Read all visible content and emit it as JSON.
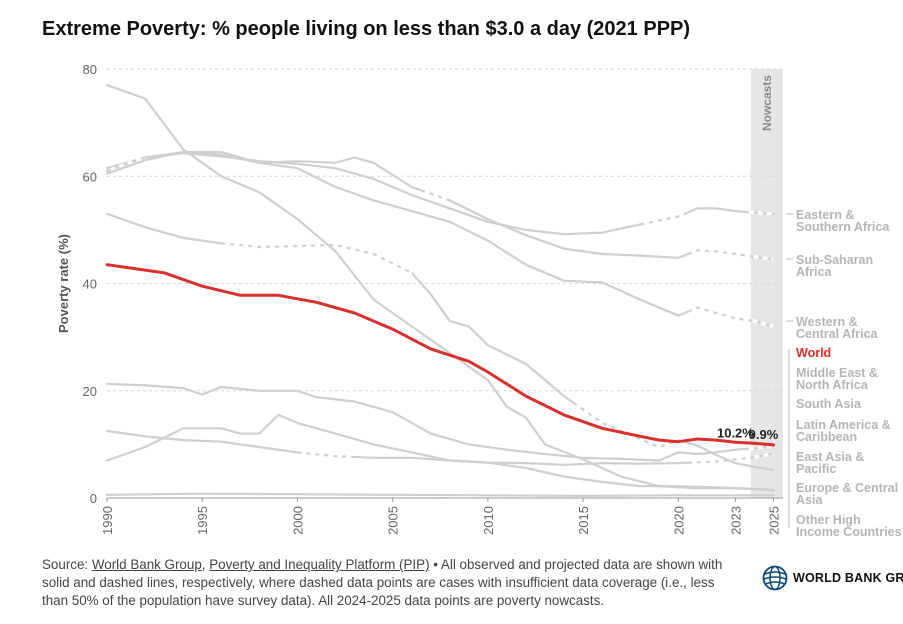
{
  "title": "Extreme Poverty: % people living on less than $3.0 a day (2021 PPP)",
  "footer": {
    "source_label": "Source: ",
    "link1": "World Bank Group",
    "sep": ", ",
    "link2": "Poverty and Inequality Platform (PIP)",
    "rest": " • All observed and projected data are shown with solid and dashed lines, respectively, where dashed data points are cases with insufficient data coverage (i.e., less than 50% of the population have survey data). All 2024-2025 data points are poverty nowcasts."
  },
  "logo": {
    "text": "WORLD BANK GROUP",
    "icon": "globe-icon"
  },
  "chart_data": {
    "type": "line",
    "xlim": [
      1990,
      2025.5
    ],
    "ylim": [
      0,
      80
    ],
    "xticks": [
      1990,
      1995,
      2000,
      2005,
      2010,
      2015,
      2020,
      2023,
      2025
    ],
    "yticks": [
      0,
      20,
      40,
      60,
      80
    ],
    "ylabel": "Poverty rate (%)",
    "xlabel": "",
    "grid": "horizontal dashed",
    "nowcast_band": {
      "from": 2023.8,
      "to": 2025.5,
      "label": "Nowcasts"
    },
    "colors": {
      "highlight": "#d9302c",
      "context": "#cfcfcf",
      "band": "#e6e6e6",
      "label_gray": "#b5b5b5"
    },
    "series": [
      {
        "name": "Eastern & Southern Africa",
        "label_lines": [
          "Eastern &",
          "Southern Africa"
        ],
        "highlight": false,
        "points": [
          [
            1990,
            61.5
          ],
          [
            1992,
            63.5
          ],
          [
            1994,
            64.3
          ],
          [
            1996,
            63.7
          ],
          [
            1998,
            62.8
          ],
          [
            2000,
            62.3
          ],
          [
            2002,
            61.5
          ],
          [
            2004,
            59.5
          ],
          [
            2006,
            56.5
          ],
          [
            2008,
            54
          ],
          [
            2010,
            51.5
          ],
          [
            2012,
            50
          ],
          [
            2014,
            49.2
          ],
          [
            2016,
            49.5
          ],
          [
            2018,
            51
          ],
          [
            2020,
            52.5
          ],
          [
            2021,
            54
          ],
          [
            2022,
            54
          ],
          [
            2023,
            53.5
          ],
          [
            2024,
            53.2
          ],
          [
            2025,
            53
          ]
        ],
        "dashed": [
          [
            2018,
            2020.5
          ],
          [
            2023.5,
            2025
          ]
        ]
      },
      {
        "name": "Sub-Saharan Africa",
        "label_lines": [
          "Sub-Saharan",
          "Africa"
        ],
        "highlight": false,
        "points": [
          [
            1990,
            61
          ],
          [
            1992,
            63.5
          ],
          [
            1994,
            64.5
          ],
          [
            1996,
            64
          ],
          [
            1998,
            62.5
          ],
          [
            2000,
            62.8
          ],
          [
            2002,
            62.5
          ],
          [
            2003,
            63.5
          ],
          [
            2004,
            62.5
          ],
          [
            2006,
            58
          ],
          [
            2008,
            55.5
          ],
          [
            2010,
            52
          ],
          [
            2012,
            49
          ],
          [
            2014,
            46.5
          ],
          [
            2016,
            45.5
          ],
          [
            2018,
            45.2
          ],
          [
            2020,
            44.8
          ],
          [
            2021,
            46.2
          ],
          [
            2022,
            46
          ],
          [
            2023,
            45.5
          ],
          [
            2024,
            45
          ],
          [
            2025,
            44.5
          ]
        ],
        "dashed": [
          [
            1990,
            1992
          ],
          [
            2006.5,
            2008
          ],
          [
            2020.5,
            2025
          ]
        ]
      },
      {
        "name": "Western & Central Africa",
        "label_lines": [
          "Western &",
          "Central Africa"
        ],
        "highlight": false,
        "points": [
          [
            1990,
            60.5
          ],
          [
            1992,
            63
          ],
          [
            1994,
            64.5
          ],
          [
            1996,
            64.5
          ],
          [
            1998,
            62.5
          ],
          [
            2000,
            61.5
          ],
          [
            2002,
            58
          ],
          [
            2004,
            55.5
          ],
          [
            2006,
            53.5
          ],
          [
            2008,
            51.5
          ],
          [
            2010,
            48
          ],
          [
            2012,
            43.5
          ],
          [
            2014,
            40.5
          ],
          [
            2016,
            40.2
          ],
          [
            2018,
            37
          ],
          [
            2020,
            34
          ],
          [
            2021,
            35.5
          ],
          [
            2022,
            34.5
          ],
          [
            2023,
            33.5
          ],
          [
            2024,
            33
          ],
          [
            2025,
            32
          ]
        ],
        "dashed": [
          [
            2020.5,
            2025
          ]
        ]
      },
      {
        "name": "World",
        "label_lines": [
          "World"
        ],
        "highlight": true,
        "points": [
          [
            1990,
            43.5
          ],
          [
            1992,
            42.5
          ],
          [
            1993,
            42
          ],
          [
            1995,
            39.5
          ],
          [
            1997,
            37.8
          ],
          [
            1999,
            37.8
          ],
          [
            2001,
            36.5
          ],
          [
            2003,
            34.5
          ],
          [
            2005,
            31.5
          ],
          [
            2007,
            27.8
          ],
          [
            2009,
            25.5
          ],
          [
            2010,
            23.5
          ],
          [
            2012,
            19
          ],
          [
            2014,
            15.5
          ],
          [
            2016,
            13
          ],
          [
            2018,
            11.5
          ],
          [
            2019,
            10.8
          ],
          [
            2020,
            10.5
          ],
          [
            2021,
            11
          ],
          [
            2022,
            10.8
          ],
          [
            2023,
            10.4
          ],
          [
            2024,
            10.2
          ],
          [
            2025,
            9.9
          ]
        ],
        "dashed": []
      },
      {
        "name": "Middle East & North Africa",
        "label_lines": [
          "Middle East &",
          "North Africa"
        ],
        "highlight": false,
        "points": [
          [
            1990,
            12.5
          ],
          [
            1992,
            11.5
          ],
          [
            1994,
            10.8
          ],
          [
            1996,
            10.5
          ],
          [
            1998,
            9.5
          ],
          [
            2000,
            8.5
          ],
          [
            2002,
            7.8
          ],
          [
            2004,
            7.5
          ],
          [
            2006,
            7.5
          ],
          [
            2008,
            7
          ],
          [
            2010,
            6.6
          ],
          [
            2012,
            6.5
          ],
          [
            2014,
            6.2
          ],
          [
            2016,
            6.5
          ],
          [
            2018,
            6.4
          ],
          [
            2020,
            6.5
          ],
          [
            2022,
            6.8
          ],
          [
            2024,
            7.6
          ],
          [
            2025,
            8.3
          ]
        ],
        "dashed": [
          [
            2000,
            2003
          ],
          [
            2020.5,
            2025
          ]
        ]
      },
      {
        "name": "South Asia",
        "label_lines": [
          "South Asia"
        ],
        "highlight": false,
        "points": [
          [
            1990,
            53
          ],
          [
            1992,
            50.5
          ],
          [
            1994,
            48.5
          ],
          [
            1996,
            47.5
          ],
          [
            1998,
            46.8
          ],
          [
            2000,
            47
          ],
          [
            2002,
            47.2
          ],
          [
            2004,
            45.5
          ],
          [
            2006,
            42
          ],
          [
            2007,
            38
          ],
          [
            2008,
            33
          ],
          [
            2009,
            32
          ],
          [
            2010,
            28.5
          ],
          [
            2012,
            25
          ],
          [
            2014,
            19
          ],
          [
            2016,
            14
          ],
          [
            2018,
            11
          ],
          [
            2019,
            9.5
          ],
          [
            2020,
            10.8
          ],
          [
            2021,
            9.8
          ],
          [
            2022,
            8
          ],
          [
            2023,
            6.5
          ],
          [
            2024,
            5.8
          ],
          [
            2025,
            5.2
          ]
        ],
        "dashed": [
          [
            1996,
            2006
          ],
          [
            2014.5,
            2020
          ]
        ]
      },
      {
        "name": "Latin America & Caribbean",
        "label_lines": [
          "Latin America &",
          "Caribbean"
        ],
        "highlight": false,
        "points": [
          [
            1990,
            21.3
          ],
          [
            1992,
            21
          ],
          [
            1994,
            20.5
          ],
          [
            1995,
            19.3
          ],
          [
            1996,
            20.7
          ],
          [
            1998,
            20
          ],
          [
            2000,
            20
          ],
          [
            2001,
            18.8
          ],
          [
            2003,
            18
          ],
          [
            2005,
            16
          ],
          [
            2007,
            12
          ],
          [
            2009,
            10
          ],
          [
            2011,
            9
          ],
          [
            2013,
            8.2
          ],
          [
            2015,
            7.5
          ],
          [
            2017,
            7.3
          ],
          [
            2019,
            7
          ],
          [
            2020,
            8.5
          ],
          [
            2021,
            8.2
          ],
          [
            2022,
            8.5
          ],
          [
            2023,
            9
          ],
          [
            2024,
            9.3
          ],
          [
            2025,
            9.7
          ]
        ],
        "dashed": [
          [
            2023.5,
            2025
          ]
        ]
      },
      {
        "name": "East Asia & Pacific",
        "label_lines": [
          "East Asia &",
          "Pacific"
        ],
        "highlight": false,
        "points": [
          [
            1990,
            77
          ],
          [
            1992,
            74.5
          ],
          [
            1994,
            65
          ],
          [
            1996,
            60
          ],
          [
            1998,
            57
          ],
          [
            2000,
            52
          ],
          [
            2002,
            46
          ],
          [
            2004,
            37
          ],
          [
            2006,
            32
          ],
          [
            2008,
            27
          ],
          [
            2010,
            22
          ],
          [
            2011,
            17
          ],
          [
            2012,
            15
          ],
          [
            2013,
            10
          ],
          [
            2015,
            7.2
          ],
          [
            2017,
            4
          ],
          [
            2019,
            2.2
          ],
          [
            2021,
            1.8
          ],
          [
            2023,
            1.8
          ],
          [
            2025,
            1.5
          ]
        ],
        "dashed": []
      },
      {
        "name": "Europe & Central Asia",
        "label_lines": [
          "Europe & Central",
          "Asia"
        ],
        "highlight": false,
        "points": [
          [
            1990,
            7
          ],
          [
            1992,
            9.5
          ],
          [
            1994,
            13
          ],
          [
            1996,
            13
          ],
          [
            1997,
            12
          ],
          [
            1998,
            12
          ],
          [
            1999,
            15.5
          ],
          [
            2000,
            14
          ],
          [
            2002,
            12
          ],
          [
            2004,
            10
          ],
          [
            2006,
            8.5
          ],
          [
            2008,
            7
          ],
          [
            2010,
            6.6
          ],
          [
            2012,
            5.6
          ],
          [
            2014,
            4
          ],
          [
            2016,
            3
          ],
          [
            2018,
            2.2
          ],
          [
            2020,
            2.2
          ],
          [
            2022,
            2
          ],
          [
            2024,
            1.7
          ],
          [
            2025,
            1.5
          ]
        ],
        "dashed": []
      },
      {
        "name": "Other High Income Countries",
        "label_lines": [
          "Other High",
          "Income Countries"
        ],
        "highlight": false,
        "points": [
          [
            1990,
            0.6
          ],
          [
            1995,
            0.8
          ],
          [
            2000,
            0.7
          ],
          [
            2005,
            0.6
          ],
          [
            2010,
            0.5
          ],
          [
            2015,
            0.4
          ],
          [
            2020,
            0.5
          ],
          [
            2025,
            0.5
          ]
        ],
        "dashed": []
      }
    ],
    "end_labels": [
      {
        "series": "Eastern & Southern Africa",
        "lines": [
          "Eastern &",
          "Southern Africa"
        ]
      },
      {
        "series": "Sub-Saharan Africa",
        "lines": [
          "Sub-Saharan",
          "Africa"
        ]
      },
      {
        "series": "Western & Central Africa",
        "lines": [
          "Western &",
          "Central Africa"
        ]
      },
      {
        "series": "World",
        "lines": [
          "World"
        ]
      },
      {
        "series": "Middle East & North Africa",
        "lines": [
          "Middle East &",
          "North Africa"
        ]
      },
      {
        "series": "South Asia",
        "lines": [
          "South Asia"
        ]
      },
      {
        "series": "Latin America & Caribbean",
        "lines": [
          "Latin America &",
          "Caribbean"
        ]
      },
      {
        "series": "East Asia & Pacific",
        "lines": [
          "East Asia &",
          "Pacific"
        ]
      },
      {
        "series": "Europe & Central Asia",
        "lines": [
          "Europe & Central",
          "Asia"
        ]
      },
      {
        "series": "Other High Income Countries",
        "lines": [
          "Other High",
          "Income Countries"
        ]
      }
    ],
    "annotations": [
      {
        "text": "10.2%",
        "x": 2024,
        "y": 10.2
      },
      {
        "text": "9.9%",
        "x": 2025,
        "y": 9.9
      }
    ]
  }
}
